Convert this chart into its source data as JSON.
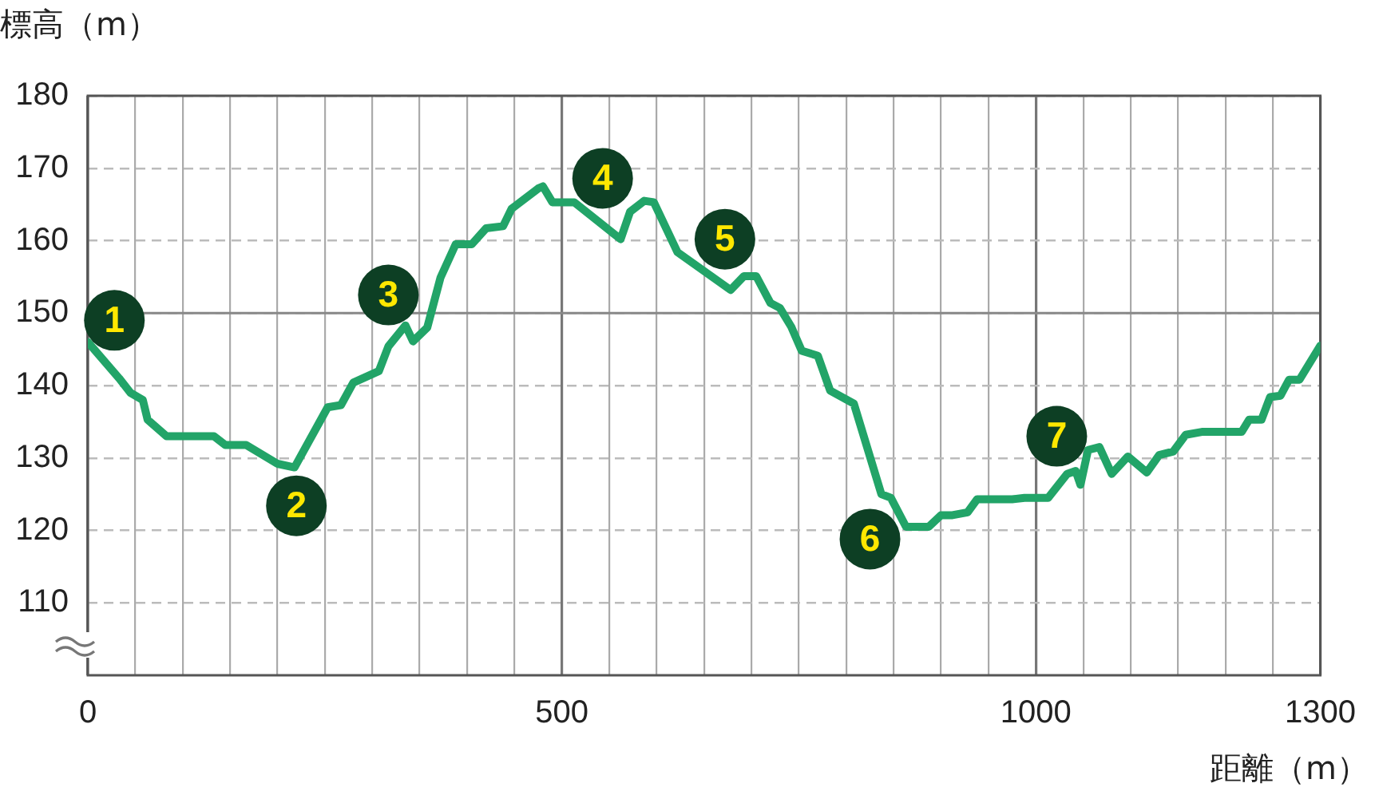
{
  "chart_data": {
    "type": "line",
    "xlabel": "距離（m）",
    "ylabel": "標高（m）",
    "x": [
      0,
      33,
      45,
      58,
      63,
      83,
      133,
      145,
      167,
      200,
      218,
      253,
      267,
      280,
      307,
      317,
      335,
      343,
      358,
      372,
      388,
      405,
      420,
      438,
      447,
      475,
      480,
      490,
      513,
      562,
      572,
      587,
      597,
      622,
      678,
      692,
      705,
      720,
      730,
      742,
      753,
      770,
      783,
      808,
      837,
      847,
      863,
      887,
      900,
      912,
      928,
      938,
      975,
      988,
      1013,
      1033,
      1042,
      1047,
      1055,
      1067,
      1080,
      1097,
      1117,
      1130,
      1145,
      1158,
      1175,
      1217,
      1225,
      1238,
      1247,
      1258,
      1267,
      1278,
      1300
    ],
    "series": [
      {
        "color": "#22a468",
        "values": [
          146,
          141,
          139,
          138,
          135.3,
          133,
          133,
          131.8,
          131.8,
          129.2,
          128.7,
          137,
          137.3,
          140.4,
          142,
          145.4,
          148.3,
          146.1,
          148,
          154.9,
          159.5,
          159.5,
          161.7,
          162,
          164.4,
          167.2,
          167.5,
          165.3,
          165.3,
          160.2,
          164,
          165.5,
          165.3,
          158.4,
          153.2,
          155.1,
          155.1,
          151.4,
          150.7,
          148.1,
          144.8,
          144.1,
          139.3,
          137.5,
          125,
          124.5,
          120.5,
          120.5,
          122.1,
          122.1,
          122.5,
          124.3,
          124.3,
          124.5,
          124.5,
          127.8,
          128.2,
          126.3,
          131.1,
          131.5,
          127.8,
          130.2,
          128,
          130.4,
          130.9,
          133.2,
          133.6,
          133.6,
          135.3,
          135.3,
          138.4,
          138.6,
          140.8,
          140.8,
          145.5
        ]
      }
    ],
    "xlim": [
      0,
      1300
    ],
    "xticks": [
      0,
      {
        "value": 50,
        "label": null
      },
      {
        "value": 100,
        "label": null
      },
      {
        "value": 150,
        "label": null
      },
      {
        "value": 200,
        "label": null
      },
      {
        "value": 250,
        "label": null
      },
      {
        "value": 300,
        "label": null
      },
      {
        "value": 350,
        "label": null
      },
      {
        "value": 400,
        "label": null
      },
      {
        "value": 450,
        "label": null
      },
      500,
      {
        "value": 550,
        "label": null
      },
      {
        "value": 600,
        "label": null
      },
      {
        "value": 650,
        "label": null
      },
      {
        "value": 700,
        "label": null
      },
      {
        "value": 750,
        "label": null
      },
      {
        "value": 800,
        "label": null
      },
      {
        "value": 850,
        "label": null
      },
      {
        "value": 900,
        "label": null
      },
      {
        "value": 950,
        "label": null
      },
      1000,
      {
        "value": 1050,
        "label": null
      },
      {
        "value": 1100,
        "label": null
      },
      {
        "value": 1150,
        "label": null
      },
      {
        "value": 1200,
        "label": null
      },
      {
        "value": 1250,
        "label": null
      },
      1300
    ],
    "ylim": [
      100,
      180
    ],
    "yticks": [
      110,
      120,
      130,
      140,
      150,
      160,
      170,
      180
    ],
    "grid": true,
    "legend": false,
    "marker": "none",
    "line_style": "solid",
    "ref_lines": [
      {
        "axis": "y",
        "value": 150,
        "label": null,
        "color": "#888888",
        "line_style": "solid"
      }
    ],
    "annotations": [
      {
        "text": "1",
        "x": 28,
        "y": 149
      },
      {
        "text": "2",
        "x": 220,
        "y": 123.4
      },
      {
        "text": "3",
        "x": 317,
        "y": 152.5
      },
      {
        "text": "4",
        "x": 543,
        "y": 168.6
      },
      {
        "text": "5",
        "x": 672,
        "y": 160.2
      },
      {
        "text": "6",
        "x": 825,
        "y": 118.8
      },
      {
        "text": "7",
        "x": 1022,
        "y": 133
      }
    ]
  }
}
